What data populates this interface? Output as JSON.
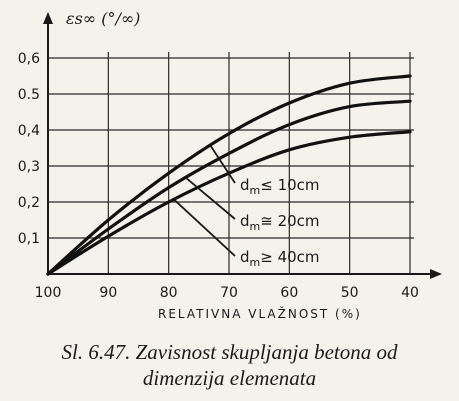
{
  "chart_data": {
    "type": "line",
    "ylabel": "εs∞ (°/∞)",
    "xlabel": "RELATIVNA VLAŽNOST (%)",
    "x_reversed": true,
    "xlim": [
      100,
      40
    ],
    "ylim": [
      0,
      0.6
    ],
    "grid": true,
    "x_ticks": [
      "100",
      "90",
      "80",
      "70",
      "60",
      "50",
      "40"
    ],
    "y_ticks": [
      "0,1",
      "0,2",
      "0,3",
      "0,4",
      "0.5",
      "0,6"
    ],
    "series": [
      {
        "name": "d_m ≤ 10cm",
        "x": [
          100,
          90,
          80,
          70,
          60,
          50,
          40
        ],
        "y": [
          0.0,
          0.15,
          0.28,
          0.39,
          0.475,
          0.53,
          0.55
        ]
      },
      {
        "name": "d_m ≅ 20cm",
        "x": [
          100,
          90,
          80,
          70,
          60,
          50,
          40
        ],
        "y": [
          0.0,
          0.125,
          0.24,
          0.335,
          0.415,
          0.465,
          0.48
        ]
      },
      {
        "name": "d_m ≥ 40cm",
        "x": [
          100,
          90,
          80,
          70,
          60,
          50,
          40
        ],
        "y": [
          0.0,
          0.105,
          0.2,
          0.28,
          0.345,
          0.38,
          0.395
        ]
      }
    ],
    "annotations": [
      {
        "prefix": "d",
        "sub": "m",
        "symbol": "≤",
        "value": "10cm"
      },
      {
        "prefix": "d",
        "sub": "m",
        "symbol": "≅",
        "value": "20cm"
      },
      {
        "prefix": "d",
        "sub": "m",
        "symbol": "≥",
        "value": "40cm"
      }
    ]
  },
  "caption": {
    "line1": "Sl. 6.47. Zavisnost skupljanja betona od",
    "line2": "dimenzija elemenata"
  }
}
